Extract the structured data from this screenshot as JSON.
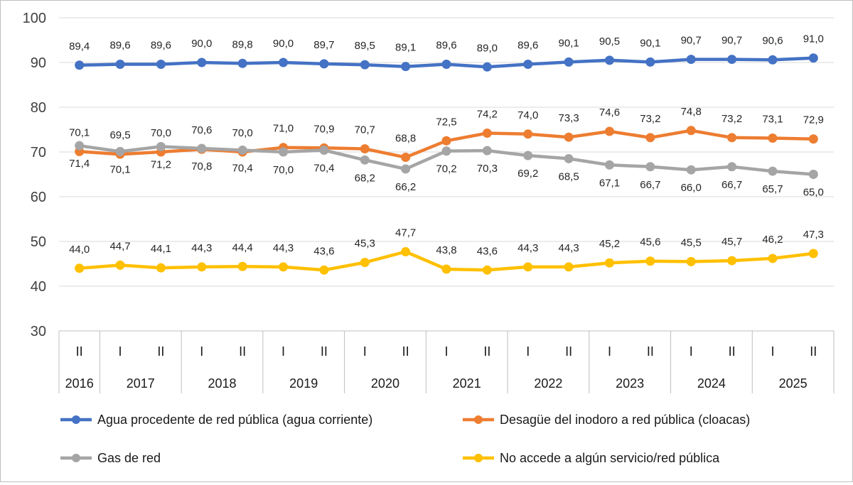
{
  "chart_data": {
    "type": "line",
    "title": "",
    "xlabel": "",
    "ylabel": "",
    "ylim": [
      30,
      100
    ],
    "yticks": [
      30,
      40,
      50,
      60,
      70,
      80,
      90,
      100
    ],
    "grid": "horizontal",
    "legend_position": "bottom",
    "categories": [
      "II",
      "I",
      "II",
      "I",
      "II",
      "I",
      "II",
      "I",
      "II",
      "I",
      "II",
      "I",
      "II",
      "I",
      "II",
      "I",
      "II",
      "I",
      "II"
    ],
    "years": [
      {
        "label": "2016",
        "span": 1
      },
      {
        "label": "2017",
        "span": 2
      },
      {
        "label": "2018",
        "span": 2
      },
      {
        "label": "2019",
        "span": 2
      },
      {
        "label": "2020",
        "span": 2
      },
      {
        "label": "2021",
        "span": 2
      },
      {
        "label": "2022",
        "span": 2
      },
      {
        "label": "2023",
        "span": 2
      },
      {
        "label": "2024",
        "span": 2
      },
      {
        "label": "2025",
        "span": 2
      }
    ],
    "series": [
      {
        "name": "Agua procedente de red pública (agua corriente)",
        "color": "#4472c4",
        "label_position": "above",
        "values": [
          89.4,
          89.6,
          89.6,
          90.0,
          89.8,
          90.0,
          89.7,
          89.5,
          89.1,
          89.6,
          89.0,
          89.6,
          90.1,
          90.5,
          90.1,
          90.7,
          90.7,
          90.6,
          91.0
        ],
        "labels": [
          "89,4",
          "89,6",
          "89,6",
          "90,0",
          "89,8",
          "90,0",
          "89,7",
          "89,5",
          "89,1",
          "89,6",
          "89,0",
          "89,6",
          "90,1",
          "90,5",
          "90,1",
          "90,7",
          "90,7",
          "90,6",
          "91,0"
        ]
      },
      {
        "name": "Desagüe del inodoro a red pública (cloacas)",
        "color": "#ed7d31",
        "label_position": "above",
        "values": [
          70.1,
          69.5,
          70.0,
          70.6,
          70.0,
          71.0,
          70.9,
          70.7,
          68.8,
          72.5,
          74.2,
          74.0,
          73.3,
          74.6,
          73.2,
          74.8,
          73.2,
          73.1,
          72.9
        ],
        "labels": [
          "70,1",
          "69,5",
          "70,0",
          "70,6",
          "70,0",
          "71,0",
          "70,9",
          "70,7",
          "68,8",
          "72,5",
          "74,2",
          "74,0",
          "73,3",
          "74,6",
          "73,2",
          "74,8",
          "73,2",
          "73,1",
          "72,9"
        ]
      },
      {
        "name": "Gas de red",
        "color": "#a5a5a5",
        "label_position": "below",
        "values": [
          71.4,
          70.1,
          71.2,
          70.8,
          70.4,
          70.0,
          70.4,
          68.2,
          66.2,
          70.2,
          70.3,
          69.2,
          68.5,
          67.1,
          66.7,
          66.0,
          66.7,
          65.7,
          65.0
        ],
        "labels": [
          "71,4",
          "70,1",
          "71,2",
          "70,8",
          "70,4",
          "70,0",
          "70,4",
          "68,2",
          "66,2",
          "70,2",
          "70,3",
          "69,2",
          "68,5",
          "67,1",
          "66,7",
          "66,0",
          "66,7",
          "65,7",
          "65,0"
        ]
      },
      {
        "name": "No accede a algún servicio/red pública",
        "color": "#ffc000",
        "label_position": "above",
        "values": [
          44.0,
          44.7,
          44.1,
          44.3,
          44.4,
          44.3,
          43.6,
          45.3,
          47.7,
          43.8,
          43.6,
          44.3,
          44.3,
          45.2,
          45.6,
          45.5,
          45.7,
          46.2,
          47.3
        ],
        "labels": [
          "44,0",
          "44,7",
          "44,1",
          "44,3",
          "44,4",
          "44,3",
          "43,6",
          "45,3",
          "47,7",
          "43,8",
          "43,6",
          "44,3",
          "44,3",
          "45,2",
          "45,6",
          "45,5",
          "45,7",
          "46,2",
          "47,3"
        ]
      }
    ]
  }
}
